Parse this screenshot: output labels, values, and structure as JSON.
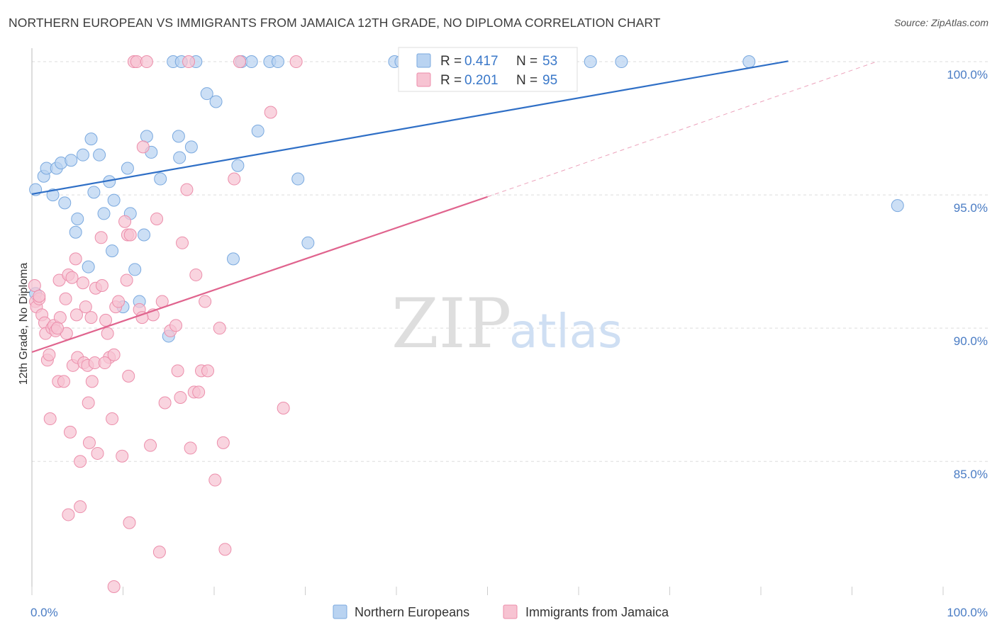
{
  "header": {
    "title": "NORTHERN EUROPEAN VS IMMIGRANTS FROM JAMAICA 12TH GRADE, NO DIPLOMA CORRELATION CHART",
    "source": "Source: ZipAtlas.com"
  },
  "watermark": {
    "part1": "ZIP",
    "part2": "atlas"
  },
  "legend": {
    "rows": [
      {
        "r_label": "R =",
        "r_value": "0.417",
        "n_label": "N =",
        "n_value": "53"
      },
      {
        "r_label": "R =",
        "r_value": "0.201",
        "n_label": "N =",
        "n_value": "95"
      }
    ]
  },
  "bottom_legend": {
    "series1": "Northern Europeans",
    "series2": "Immigrants from Jamaica"
  },
  "colors": {
    "blue_fill": "#b9d3f1",
    "blue_stroke": "#7aa9df",
    "blue_line": "#2f6fc6",
    "pink_fill": "#f7c3d2",
    "pink_stroke": "#ec8eab",
    "pink_line": "#e0648e",
    "grid": "#dddddd",
    "tick_text": "#4a7cc4"
  },
  "chart_data": {
    "type": "scatter",
    "ylabel": "12th Grade, No Diploma",
    "xlim": [
      0,
      100
    ],
    "ylim": [
      80.3,
      100.4
    ],
    "y_ticks": [
      85,
      90,
      95,
      100
    ],
    "y_tick_labels": [
      "85.0%",
      "90.0%",
      "95.0%",
      "100.0%"
    ],
    "x_tick_labels": [
      "0.0%",
      "100.0%"
    ],
    "grid": true,
    "series": [
      {
        "name": "Northern Europeans",
        "color": "#b9d3f1",
        "trend": {
          "x": [
            0,
            83
          ],
          "y": [
            95.03,
            100.02
          ],
          "style": "solid"
        },
        "points": [
          [
            0.4,
            91.3
          ],
          [
            0.4,
            95.2
          ],
          [
            1.3,
            95.7
          ],
          [
            1.6,
            96.0
          ],
          [
            2.3,
            95.0
          ],
          [
            2.7,
            96.0
          ],
          [
            3.2,
            96.2
          ],
          [
            3.6,
            94.7
          ],
          [
            4.3,
            96.3
          ],
          [
            4.8,
            93.6
          ],
          [
            5.0,
            94.1
          ],
          [
            5.6,
            96.5
          ],
          [
            6.2,
            92.3
          ],
          [
            6.5,
            97.1
          ],
          [
            6.8,
            95.1
          ],
          [
            7.4,
            96.5
          ],
          [
            7.9,
            94.3
          ],
          [
            8.5,
            95.5
          ],
          [
            8.8,
            92.9
          ],
          [
            9.0,
            94.8
          ],
          [
            10.0,
            90.8
          ],
          [
            10.5,
            96.0
          ],
          [
            10.8,
            94.3
          ],
          [
            11.3,
            92.2
          ],
          [
            11.8,
            91.0
          ],
          [
            12.3,
            93.5
          ],
          [
            12.6,
            97.2
          ],
          [
            13.1,
            96.6
          ],
          [
            14.1,
            95.6
          ],
          [
            15.0,
            89.7
          ],
          [
            15.5,
            100.0
          ],
          [
            16.1,
            97.2
          ],
          [
            16.4,
            100.0
          ],
          [
            16.2,
            96.4
          ],
          [
            17.5,
            96.8
          ],
          [
            18.0,
            100.0
          ],
          [
            19.2,
            98.8
          ],
          [
            20.2,
            98.5
          ],
          [
            22.1,
            92.6
          ],
          [
            22.6,
            96.1
          ],
          [
            23.0,
            100.0
          ],
          [
            24.1,
            100.0
          ],
          [
            24.8,
            97.4
          ],
          [
            26.1,
            100.0
          ],
          [
            27.0,
            100.0
          ],
          [
            29.2,
            95.6
          ],
          [
            30.3,
            93.2
          ],
          [
            39.8,
            100.0
          ],
          [
            40.5,
            100.0
          ],
          [
            61.3,
            100.0
          ],
          [
            64.7,
            100.0
          ],
          [
            78.7,
            100.0
          ],
          [
            95.0,
            94.6
          ]
        ]
      },
      {
        "name": "Immigrants from Jamaica",
        "color": "#f7c3d2",
        "trend": {
          "x": [
            0,
            50
          ],
          "y": [
            89.1,
            94.93
          ],
          "style": "solid"
        },
        "trend_extension": {
          "x": [
            50,
            92.7
          ],
          "y": [
            94.93,
            100.0
          ],
          "style": "dashed"
        },
        "points": [
          [
            0.3,
            91.6
          ],
          [
            0.4,
            91.0
          ],
          [
            0.5,
            90.8
          ],
          [
            0.8,
            91.1
          ],
          [
            1.1,
            90.5
          ],
          [
            1.4,
            90.2
          ],
          [
            1.5,
            89.8
          ],
          [
            1.7,
            88.8
          ],
          [
            1.9,
            89.0
          ],
          [
            2.0,
            86.6
          ],
          [
            2.2,
            90.0
          ],
          [
            2.4,
            90.1
          ],
          [
            2.6,
            89.9
          ],
          [
            2.9,
            88.0
          ],
          [
            3.1,
            90.4
          ],
          [
            3.0,
            91.8
          ],
          [
            3.5,
            88.0
          ],
          [
            3.7,
            91.1
          ],
          [
            3.8,
            89.8
          ],
          [
            4.0,
            92.0
          ],
          [
            4.2,
            86.1
          ],
          [
            4.4,
            91.9
          ],
          [
            4.5,
            88.6
          ],
          [
            4.8,
            92.6
          ],
          [
            4.9,
            90.5
          ],
          [
            5.0,
            88.9
          ],
          [
            5.3,
            85.0
          ],
          [
            5.6,
            91.7
          ],
          [
            5.7,
            88.7
          ],
          [
            5.9,
            90.8
          ],
          [
            6.1,
            88.6
          ],
          [
            6.2,
            87.2
          ],
          [
            6.3,
            85.7
          ],
          [
            6.5,
            90.4
          ],
          [
            6.6,
            88.0
          ],
          [
            6.9,
            88.7
          ],
          [
            7.0,
            91.5
          ],
          [
            7.2,
            85.3
          ],
          [
            7.6,
            93.4
          ],
          [
            7.7,
            91.6
          ],
          [
            8.1,
            90.3
          ],
          [
            8.3,
            89.8
          ],
          [
            8.5,
            88.9
          ],
          [
            8.8,
            86.6
          ],
          [
            9.0,
            80.3
          ],
          [
            9.2,
            90.8
          ],
          [
            9.5,
            91.0
          ],
          [
            9.9,
            85.2
          ],
          [
            10.2,
            94.0
          ],
          [
            10.4,
            91.8
          ],
          [
            10.5,
            93.5
          ],
          [
            10.6,
            88.2
          ],
          [
            10.7,
            82.7
          ],
          [
            11.2,
            100.0
          ],
          [
            11.5,
            100.0
          ],
          [
            11.8,
            90.7
          ],
          [
            12.2,
            96.8
          ],
          [
            12.6,
            100.0
          ],
          [
            13.0,
            85.6
          ],
          [
            13.3,
            90.5
          ],
          [
            13.7,
            94.1
          ],
          [
            14.0,
            81.6
          ],
          [
            14.3,
            91.0
          ],
          [
            15.2,
            89.9
          ],
          [
            15.8,
            90.1
          ],
          [
            16.0,
            88.4
          ],
          [
            16.3,
            87.4
          ],
          [
            16.5,
            93.2
          ],
          [
            17.0,
            95.2
          ],
          [
            17.2,
            100.0
          ],
          [
            17.4,
            85.5
          ],
          [
            17.8,
            87.6
          ],
          [
            18.0,
            92.0
          ],
          [
            18.3,
            87.6
          ],
          [
            18.6,
            88.4
          ],
          [
            19.0,
            91.0
          ],
          [
            19.3,
            88.4
          ],
          [
            20.1,
            84.3
          ],
          [
            20.6,
            90.0
          ],
          [
            21.0,
            85.7
          ],
          [
            21.2,
            81.7
          ],
          [
            22.2,
            95.6
          ],
          [
            22.8,
            100.0
          ],
          [
            26.2,
            98.1
          ],
          [
            27.6,
            87.0
          ],
          [
            29.0,
            100.0
          ],
          [
            0.8,
            91.2
          ],
          [
            2.8,
            90.0
          ],
          [
            4.0,
            83.0
          ],
          [
            5.3,
            83.3
          ],
          [
            9.0,
            89.0
          ],
          [
            10.8,
            93.5
          ],
          [
            8.0,
            88.7
          ],
          [
            12.1,
            90.4
          ],
          [
            14.6,
            87.2
          ]
        ]
      }
    ]
  }
}
